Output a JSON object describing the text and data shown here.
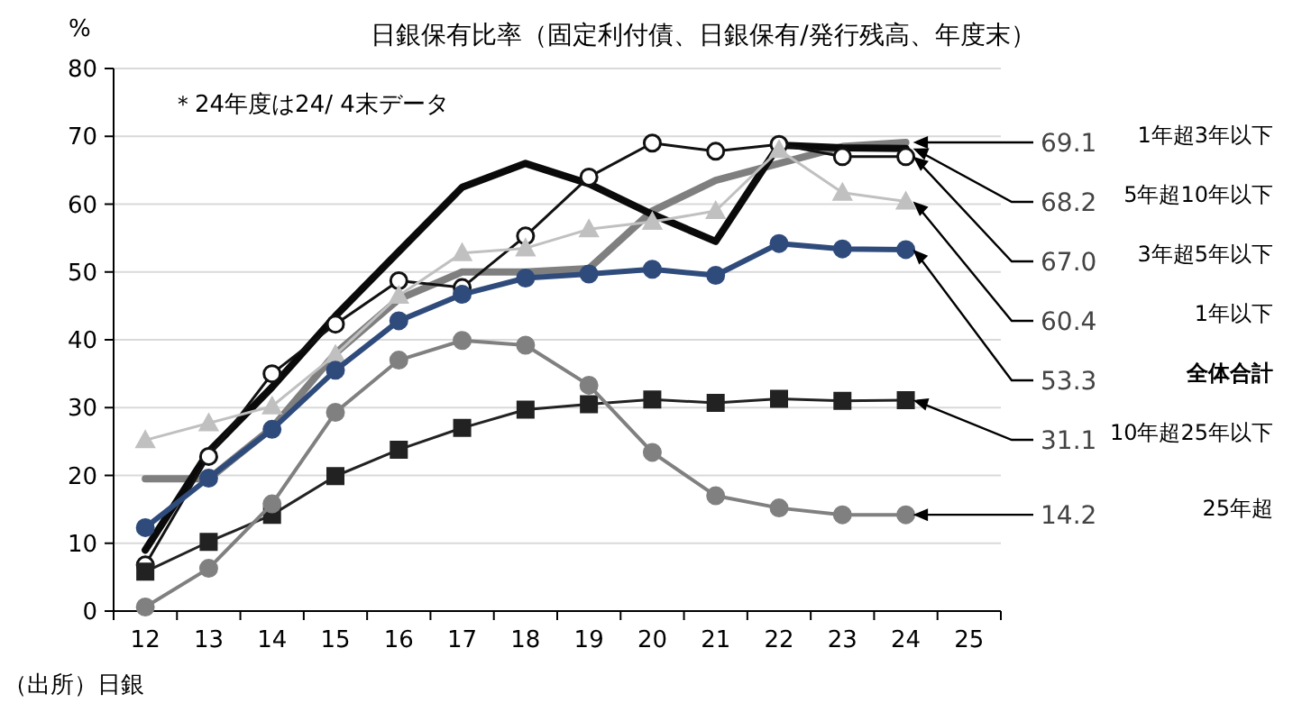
{
  "chart_data": {
    "type": "line",
    "title": "日銀保有比率（固定利付債、日銀保有/発行残高、年度末）",
    "ylabel": "%",
    "annotations": [
      "＊24年度は24/ 4末データ",
      "（出所）日銀"
    ],
    "categories": [
      "12",
      "13",
      "14",
      "15",
      "16",
      "17",
      "18",
      "19",
      "20",
      "21",
      "22",
      "23",
      "24",
      "25"
    ],
    "ylim": [
      0,
      80
    ],
    "yticks": [
      0,
      10,
      20,
      30,
      40,
      50,
      60,
      70,
      80
    ],
    "grid": "y",
    "line_style": "solid",
    "series": [
      {
        "name": "1年超3年以下",
        "color": "#7f7f7f",
        "marker": "none",
        "values": [
          19.5,
          19.5,
          27,
          38,
          46,
          50,
          50,
          50.5,
          59,
          63.5,
          66,
          68.5,
          69.1,
          null
        ],
        "value_labels": [
          null,
          null,
          null,
          null,
          null,
          null,
          null,
          null,
          null,
          null,
          null,
          null,
          "69.1",
          null
        ]
      },
      {
        "name": "5年超10年以下",
        "color": "#0a0a0a",
        "marker": "none",
        "values": [
          9,
          23.5,
          33,
          43.5,
          53,
          62.5,
          66,
          63,
          58.5,
          54.5,
          68.7,
          68.3,
          68.2,
          null
        ],
        "value_labels": [
          null,
          null,
          null,
          null,
          null,
          null,
          null,
          null,
          null,
          null,
          null,
          null,
          "68.2",
          null
        ]
      },
      {
        "name": "3年超5年以下",
        "color": "#111111",
        "marker": "circle",
        "values": [
          6.8,
          22.8,
          35,
          42.3,
          48.7,
          47.7,
          55.3,
          64,
          69,
          67.8,
          68.8,
          67,
          67,
          null
        ],
        "value_labels": [
          null,
          null,
          null,
          null,
          null,
          null,
          null,
          null,
          null,
          null,
          null,
          null,
          "67.0",
          null
        ]
      },
      {
        "name": "1年以下",
        "color": "#c0c0c0",
        "marker": "triangle",
        "values": [
          25.2,
          27.7,
          30.2,
          37.8,
          46.5,
          52.8,
          53.5,
          56.3,
          57.4,
          59,
          68,
          61.7,
          60.4,
          null
        ],
        "value_labels": [
          null,
          null,
          null,
          null,
          null,
          null,
          null,
          null,
          null,
          null,
          null,
          null,
          "60.4",
          null
        ]
      },
      {
        "name": "全体合計",
        "color": "#2f4b7c",
        "marker": "circle",
        "values": [
          12.3,
          19.6,
          26.8,
          35.5,
          42.8,
          46.7,
          49.1,
          49.7,
          50.4,
          49.5,
          54.2,
          53.4,
          53.3,
          null
        ],
        "value_labels": [
          null,
          null,
          null,
          null,
          null,
          null,
          null,
          null,
          null,
          null,
          null,
          null,
          "53.3",
          null
        ]
      },
      {
        "name": "10年超25年以下",
        "color": "#222222",
        "marker": "square",
        "values": [
          5.8,
          10.2,
          14.2,
          19.9,
          23.8,
          27,
          29.7,
          30.5,
          31.2,
          30.7,
          31.3,
          31,
          31.1,
          null
        ],
        "value_labels": [
          null,
          null,
          null,
          null,
          null,
          null,
          null,
          null,
          null,
          null,
          null,
          null,
          "31.1",
          null
        ]
      },
      {
        "name": "25年超",
        "color": "#808080",
        "marker": "circle",
        "values": [
          0.6,
          6.3,
          15.8,
          29.3,
          37,
          39.9,
          39.2,
          33.3,
          23.4,
          17,
          15.2,
          14.2,
          14.2,
          null
        ],
        "value_labels": [
          null,
          null,
          null,
          null,
          null,
          null,
          null,
          null,
          null,
          null,
          null,
          null,
          "14.2",
          null
        ]
      }
    ]
  }
}
